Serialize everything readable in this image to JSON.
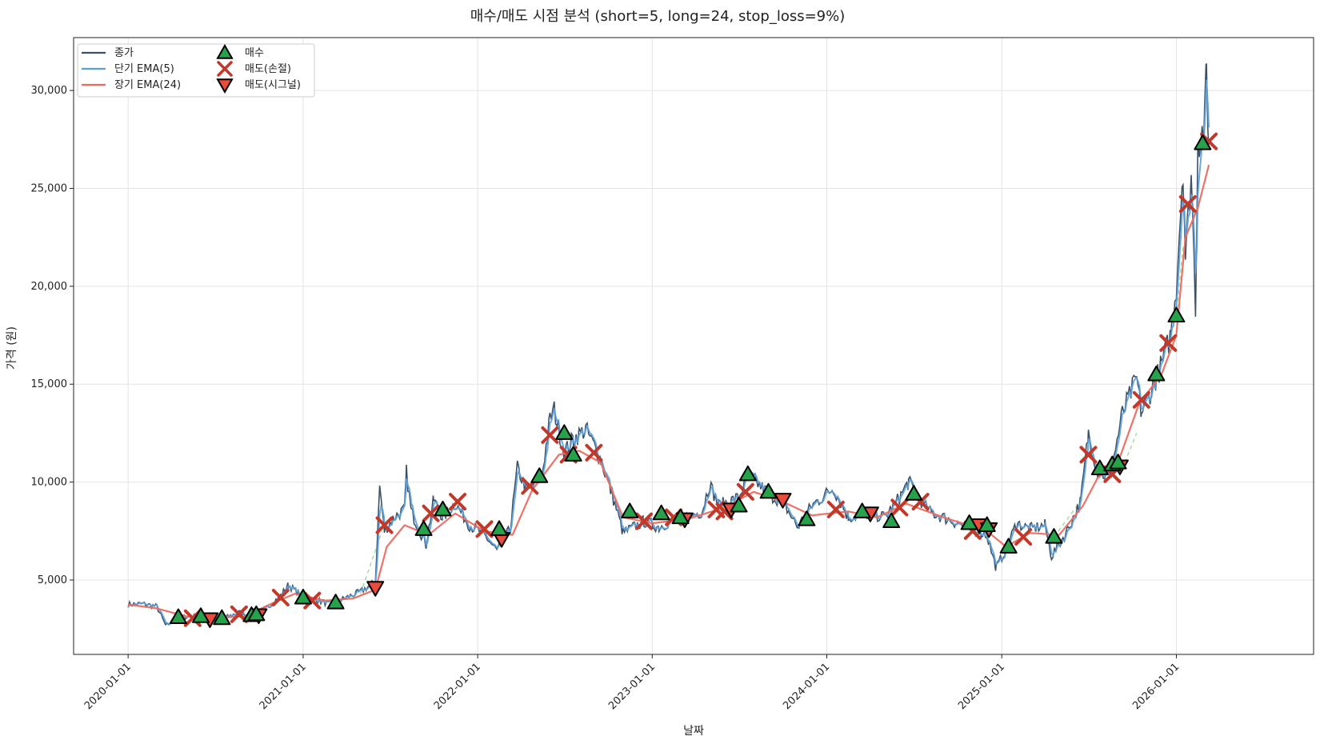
{
  "chart_data": {
    "type": "line",
    "title": "매수/매도 시점 분석 (short=5, long=24, stop_loss=9%)",
    "xlabel": "날짜",
    "ylabel": "가격 (원)",
    "x_tick_labels": [
      "2020-01-01",
      "2021-01-01",
      "2022-01-01",
      "2023-01-01",
      "2024-01-01",
      "2025-01-01",
      "2026-01-01"
    ],
    "x_tick_dates": [
      "2020-01-01",
      "2021-01-01",
      "2022-01-01",
      "2023-01-01",
      "2024-01-01",
      "2025-01-01",
      "2026-01-01"
    ],
    "y_tick_labels": [
      "5,000",
      "10,000",
      "15,000",
      "20,000",
      "25,000",
      "30,000"
    ],
    "y_tick_values": [
      5000,
      10000,
      15000,
      20000,
      25000,
      30000
    ],
    "xlim": [
      "2019-09-09",
      "2026-10-15"
    ],
    "ylim": [
      1200,
      32700
    ],
    "grid": true,
    "legend_position": "top-left",
    "colors": {
      "close": "#3d5166",
      "ema_short": "#5aa0dc",
      "ema_long": "#ee6a5e",
      "buy": "#27a14a",
      "sell_stop": "#c0392b",
      "sell_signal": "#e74c3c",
      "hold_zone": "#9bd99b"
    },
    "legend": [
      {
        "label": "종가",
        "kind": "line",
        "color": "#3d5166"
      },
      {
        "label": "단기 EMA(5)",
        "kind": "line",
        "color": "#5aa0dc"
      },
      {
        "label": "장기 EMA(24)",
        "kind": "line",
        "color": "#ee6a5e"
      },
      {
        "label": "매수",
        "kind": "buy"
      },
      {
        "label": "매도(손절)",
        "kind": "stop"
      },
      {
        "label": "매도(시그널)",
        "kind": "signal"
      }
    ],
    "close_anchors": [
      [
        "2020-01-01",
        3750
      ],
      [
        "2020-02-01",
        3780
      ],
      [
        "2020-03-01",
        3650
      ],
      [
        "2020-03-20",
        2650
      ],
      [
        "2020-04-15",
        3100
      ],
      [
        "2020-05-15",
        3150
      ],
      [
        "2020-06-15",
        2950
      ],
      [
        "2020-07-15",
        3000
      ],
      [
        "2020-08-20",
        3350
      ],
      [
        "2020-09-15",
        3100
      ],
      [
        "2020-10-15",
        3550
      ],
      [
        "2020-11-15",
        4200
      ],
      [
        "2020-12-01",
        4750
      ],
      [
        "2021-01-01",
        4100
      ],
      [
        "2021-02-01",
        3950
      ],
      [
        "2021-03-01",
        3750
      ],
      [
        "2021-04-01",
        4100
      ],
      [
        "2021-05-01",
        4400
      ],
      [
        "2021-06-01",
        4900
      ],
      [
        "2021-06-10",
        9800
      ],
      [
        "2021-06-20",
        7500
      ],
      [
        "2021-07-10",
        8200
      ],
      [
        "2021-08-01",
        8600
      ],
      [
        "2021-08-05",
        10500
      ],
      [
        "2021-08-15",
        8500
      ],
      [
        "2021-09-15",
        6800
      ],
      [
        "2021-10-01",
        9100
      ],
      [
        "2021-10-20",
        8200
      ],
      [
        "2021-11-15",
        8900
      ],
      [
        "2021-12-15",
        7800
      ],
      [
        "2022-01-15",
        7300
      ],
      [
        "2022-02-10",
        6500
      ],
      [
        "2022-03-10",
        7600
      ],
      [
        "2022-03-25",
        10700
      ],
      [
        "2022-04-15",
        9500
      ],
      [
        "2022-05-15",
        10300
      ],
      [
        "2022-06-01",
        13200
      ],
      [
        "2022-06-10",
        13700
      ],
      [
        "2022-07-01",
        11500
      ],
      [
        "2022-07-20",
        12200
      ],
      [
        "2022-08-15",
        12700
      ],
      [
        "2022-09-15",
        11200
      ],
      [
        "2022-10-15",
        8900
      ],
      [
        "2022-11-01",
        7400
      ],
      [
        "2022-12-15",
        8000
      ],
      [
        "2023-01-15",
        7700
      ],
      [
        "2023-02-15",
        8100
      ],
      [
        "2023-03-15",
        8200
      ],
      [
        "2023-04-15",
        8500
      ],
      [
        "2023-05-01",
        9900
      ],
      [
        "2023-05-20",
        8800
      ],
      [
        "2023-07-01",
        9200
      ],
      [
        "2023-07-20",
        10400
      ],
      [
        "2023-09-01",
        9400
      ],
      [
        "2023-10-01",
        9000
      ],
      [
        "2023-11-01",
        7700
      ],
      [
        "2023-12-01",
        8800
      ],
      [
        "2024-01-15",
        9700
      ],
      [
        "2024-02-15",
        8200
      ],
      [
        "2024-04-01",
        8400
      ],
      [
        "2024-05-01",
        8200
      ],
      [
        "2024-06-01",
        9200
      ],
      [
        "2024-06-20",
        10000
      ],
      [
        "2024-08-01",
        8500
      ],
      [
        "2024-10-01",
        7900
      ],
      [
        "2024-11-01",
        7600
      ],
      [
        "2024-12-01",
        7300
      ],
      [
        "2024-12-20",
        5600
      ],
      [
        "2025-01-10",
        6600
      ],
      [
        "2025-02-01",
        7900
      ],
      [
        "2025-03-01",
        7600
      ],
      [
        "2025-04-01",
        7800
      ],
      [
        "2025-04-15",
        6200
      ],
      [
        "2025-05-15",
        7400
      ],
      [
        "2025-06-15",
        9000
      ],
      [
        "2025-07-01",
        12500
      ],
      [
        "2025-07-20",
        10600
      ],
      [
        "2025-08-15",
        10200
      ],
      [
        "2025-09-10",
        13500
      ],
      [
        "2025-10-10",
        15300
      ],
      [
        "2025-10-20",
        13500
      ],
      [
        "2025-11-20",
        15300
      ],
      [
        "2025-12-01",
        16000
      ],
      [
        "2025-12-20",
        17500
      ],
      [
        "2026-01-01",
        20000
      ],
      [
        "2026-01-15",
        26200
      ],
      [
        "2026-01-20",
        21500
      ],
      [
        "2026-02-01",
        25800
      ],
      [
        "2026-02-10",
        19000
      ],
      [
        "2026-02-15",
        27500
      ],
      [
        "2026-03-01",
        28000
      ],
      [
        "2026-03-05",
        31200
      ],
      [
        "2026-03-10",
        27000
      ]
    ],
    "long_ema_anchors": [
      [
        "2020-01-01",
        3750
      ],
      [
        "2020-03-01",
        3550
      ],
      [
        "2020-05-01",
        3150
      ],
      [
        "2020-07-01",
        3050
      ],
      [
        "2020-09-01",
        3150
      ],
      [
        "2020-11-01",
        3850
      ],
      [
        "2020-12-15",
        4300
      ],
      [
        "2021-02-15",
        3950
      ],
      [
        "2021-04-15",
        4050
      ],
      [
        "2021-06-01",
        4500
      ],
      [
        "2021-06-25",
        6700
      ],
      [
        "2021-08-01",
        7800
      ],
      [
        "2021-09-20",
        7300
      ],
      [
        "2021-11-15",
        8400
      ],
      [
        "2022-01-15",
        7500
      ],
      [
        "2022-03-15",
        7300
      ],
      [
        "2022-04-25",
        9600
      ],
      [
        "2022-06-20",
        11400
      ],
      [
        "2022-08-01",
        11600
      ],
      [
        "2022-09-15",
        11000
      ],
      [
        "2022-11-01",
        8200
      ],
      [
        "2023-01-01",
        7900
      ],
      [
        "2023-03-15",
        8100
      ],
      [
        "2023-06-01",
        8700
      ],
      [
        "2023-08-01",
        9500
      ],
      [
        "2023-10-01",
        9000
      ],
      [
        "2023-12-01",
        8300
      ],
      [
        "2024-02-15",
        8500
      ],
      [
        "2024-04-15",
        8200
      ],
      [
        "2024-06-15",
        8900
      ],
      [
        "2024-09-01",
        8200
      ],
      [
        "2024-12-01",
        7500
      ],
      [
        "2025-01-10",
        6700
      ],
      [
        "2025-03-01",
        7400
      ],
      [
        "2025-05-01",
        7300
      ],
      [
        "2025-06-20",
        8800
      ],
      [
        "2025-07-20",
        10200
      ],
      [
        "2025-09-01",
        11000
      ],
      [
        "2025-10-15",
        14000
      ],
      [
        "2025-12-01",
        15500
      ],
      [
        "2026-01-01",
        17500
      ],
      [
        "2026-01-20",
        22500
      ],
      [
        "2026-02-15",
        24000
      ],
      [
        "2026-03-10",
        26200
      ]
    ],
    "hold_segments": [
      [
        [
          "2021-05-01",
          4300
        ],
        [
          "2021-06-15",
          7500
        ]
      ],
      [
        [
          "2025-04-20",
          7200
        ],
        [
          "2025-06-20",
          9200
        ]
      ],
      [
        [
          "2025-09-15",
          11000
        ],
        [
          "2025-10-10",
          12500
        ]
      ],
      [
        [
          "2026-01-01",
          18500
        ],
        [
          "2026-01-15",
          22000
        ]
      ]
    ],
    "buy_points": [
      [
        "2020-04-15",
        3100
      ],
      [
        "2020-06-01",
        3150
      ],
      [
        "2020-07-15",
        3050
      ],
      [
        "2020-09-15",
        3200
      ],
      [
        "2020-09-25",
        3250
      ],
      [
        "2021-01-01",
        4100
      ],
      [
        "2021-03-10",
        3850
      ],
      [
        "2021-09-10",
        7600
      ],
      [
        "2021-10-20",
        8600
      ],
      [
        "2022-02-15",
        7600
      ],
      [
        "2022-05-10",
        10300
      ],
      [
        "2022-07-01",
        12500
      ],
      [
        "2022-07-20",
        11400
      ],
      [
        "2022-11-15",
        8500
      ],
      [
        "2023-01-20",
        8400
      ],
      [
        "2023-03-01",
        8200
      ],
      [
        "2023-07-01",
        8800
      ],
      [
        "2023-07-20",
        10400
      ],
      [
        "2023-09-01",
        9500
      ],
      [
        "2023-11-20",
        8100
      ],
      [
        "2024-03-15",
        8500
      ],
      [
        "2024-05-15",
        8000
      ],
      [
        "2024-07-01",
        9400
      ],
      [
        "2024-10-25",
        7900
      ],
      [
        "2024-12-01",
        7800
      ],
      [
        "2025-01-15",
        6700
      ],
      [
        "2025-04-20",
        7200
      ],
      [
        "2025-07-25",
        10700
      ],
      [
        "2025-08-20",
        10900
      ],
      [
        "2025-09-01",
        11000
      ],
      [
        "2025-11-20",
        15500
      ],
      [
        "2026-01-01",
        18500
      ],
      [
        "2026-02-25",
        27300
      ]
    ],
    "stop_loss_points": [
      [
        "2020-05-15",
        3050
      ],
      [
        "2020-08-20",
        3250
      ],
      [
        "2020-11-15",
        4100
      ],
      [
        "2021-01-20",
        3950
      ],
      [
        "2021-06-20",
        7800
      ],
      [
        "2021-09-25",
        8400
      ],
      [
        "2021-11-20",
        9000
      ],
      [
        "2022-01-15",
        7600
      ],
      [
        "2022-04-20",
        9800
      ],
      [
        "2022-06-01",
        12400
      ],
      [
        "2022-07-10",
        11400
      ],
      [
        "2022-09-01",
        11500
      ],
      [
        "2022-12-15",
        8000
      ],
      [
        "2023-02-15",
        8200
      ],
      [
        "2023-05-15",
        8600
      ],
      [
        "2023-06-01",
        8500
      ],
      [
        "2023-07-15",
        9500
      ],
      [
        "2024-01-20",
        8600
      ],
      [
        "2024-06-01",
        8700
      ],
      [
        "2024-07-15",
        9000
      ],
      [
        "2024-11-01",
        7500
      ],
      [
        "2025-02-15",
        7200
      ],
      [
        "2025-07-01",
        11400
      ],
      [
        "2025-08-20",
        10400
      ],
      [
        "2025-10-20",
        14200
      ],
      [
        "2025-12-15",
        17100
      ],
      [
        "2026-01-25",
        24200
      ],
      [
        "2026-03-10",
        27400
      ]
    ],
    "signal_sell_points": [
      [
        "2020-06-20",
        3000
      ],
      [
        "2020-09-30",
        3200
      ],
      [
        "2021-06-01",
        4600
      ],
      [
        "2022-02-20",
        7100
      ],
      [
        "2023-03-10",
        8100
      ],
      [
        "2023-06-15",
        8600
      ],
      [
        "2023-10-01",
        9100
      ],
      [
        "2024-04-01",
        8400
      ],
      [
        "2024-11-15",
        7800
      ],
      [
        "2024-12-05",
        7600
      ],
      [
        "2025-09-05",
        10800
      ]
    ]
  }
}
